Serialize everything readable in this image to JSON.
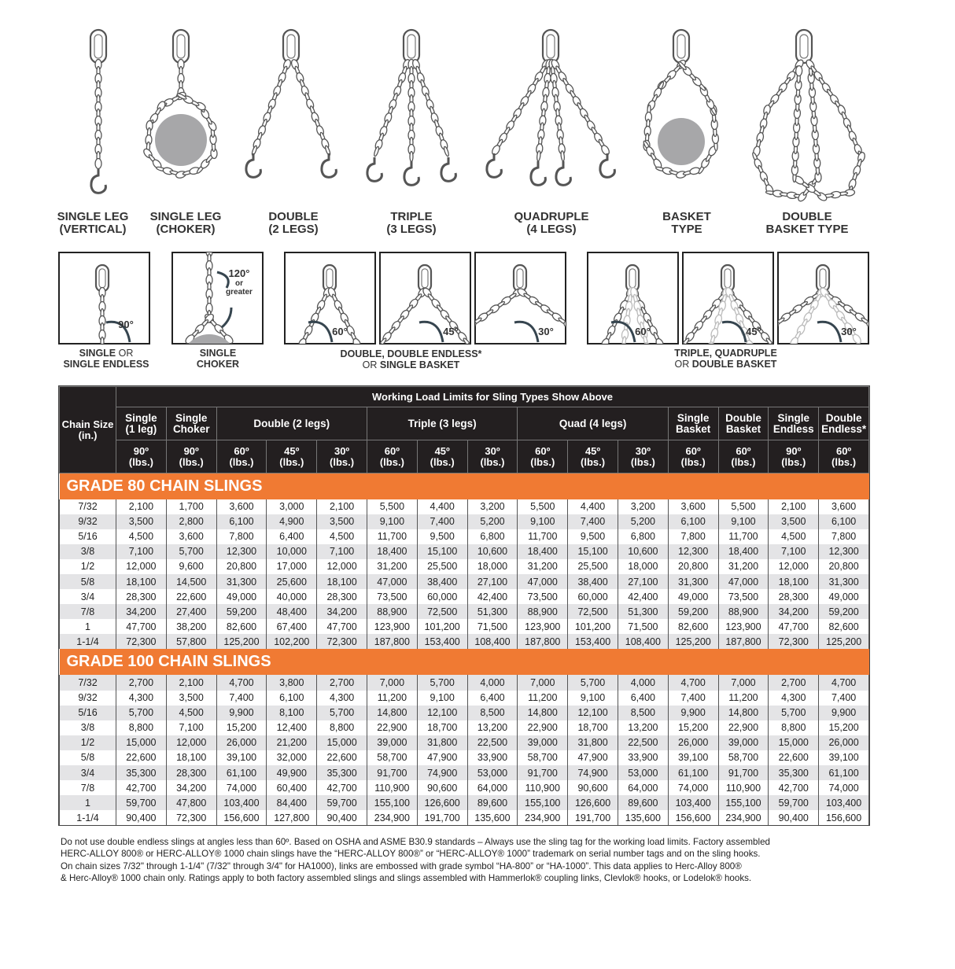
{
  "sling_types": [
    {
      "label": "SINGLE LEG\n(VERTICAL)",
      "icon": "single-leg-vertical-sling-icon"
    },
    {
      "label": "SINGLE LEG\n(CHOKER)",
      "icon": "single-leg-choker-sling-icon"
    },
    {
      "label": "DOUBLE\n(2 LEGS)",
      "icon": "double-leg-sling-icon"
    },
    {
      "label": "TRIPLE\n(3 LEGS)",
      "icon": "triple-leg-sling-icon"
    },
    {
      "label": "QUADRUPLE\n(4 LEGS)",
      "icon": "quadruple-leg-sling-icon"
    },
    {
      "label": "BASKET\nTYPE",
      "icon": "basket-sling-icon"
    },
    {
      "label": "DOUBLE\nBASKET TYPE",
      "icon": "double-basket-sling-icon"
    }
  ],
  "angle_diagrams": [
    {
      "angle": "90°"
    },
    {
      "angle": "120°",
      "note1": "or",
      "note2": "greater"
    },
    {
      "angle": "60°"
    },
    {
      "angle": "45°"
    },
    {
      "angle": "30°"
    },
    {
      "angle": "60°"
    },
    {
      "angle": "45°"
    },
    {
      "angle": "30°"
    }
  ],
  "angle_captions": {
    "single": {
      "a": "SINGLE",
      "b": " OR",
      "c": "SINGLE ENDLESS"
    },
    "choker": {
      "a": "SINGLE",
      "c": "CHOKER"
    },
    "double": {
      "a": "DOUBLE, DOUBLE ENDLESS*",
      "b": "OR ",
      "c": "SINGLE BASKET"
    },
    "triple": {
      "a": "TRIPLE, QUADRUPLE",
      "b": "OR ",
      "c": "DOUBLE BASKET"
    }
  },
  "table": {
    "title": "Working Load Limits for Sling Types Show Above",
    "chain_size_header": "Chain Size\n(in.)",
    "groups": [
      "Single\n(1 leg)",
      "Single\nChoker",
      "Double (2 legs)",
      "Triple (3 legs)",
      "Quad (4 legs)",
      "Single\nBasket",
      "Double\nBasket",
      "Single\nEndless",
      "Double\nEndless*"
    ],
    "angles": [
      "90º\n(lbs.)",
      "90º\n(lbs.)",
      "60º\n(lbs.)",
      "45º\n(lbs.)",
      "30º\n(lbs.)",
      "60º\n(lbs.)",
      "45º\n(lbs.)",
      "30º\n(lbs.)",
      "60º\n(lbs.)",
      "45º\n(lbs.)",
      "30º\n(lbs.)",
      "60º\n(lbs.)",
      "60º\n(lbs.)",
      "90º\n(lbs.)",
      "60º\n(lbs.)"
    ],
    "sections": [
      {
        "title": "GRADE 80 CHAIN SLINGS",
        "rows": [
          [
            "7/32",
            "2,100",
            "1,700",
            "3,600",
            "3,000",
            "2,100",
            "5,500",
            "4,400",
            "3,200",
            "5,500",
            "4,400",
            "3,200",
            "3,600",
            "5,500",
            "2,100",
            "3,600"
          ],
          [
            "9/32",
            "3,500",
            "2,800",
            "6,100",
            "4,900",
            "3,500",
            "9,100",
            "7,400",
            "5,200",
            "9,100",
            "7,400",
            "5,200",
            "6,100",
            "9,100",
            "3,500",
            "6,100"
          ],
          [
            "5/16",
            "4,500",
            "3,600",
            "7,800",
            "6,400",
            "4,500",
            "11,700",
            "9,500",
            "6,800",
            "11,700",
            "9,500",
            "6,800",
            "7,800",
            "11,700",
            "4,500",
            "7,800"
          ],
          [
            "3/8",
            "7,100",
            "5,700",
            "12,300",
            "10,000",
            "7,100",
            "18,400",
            "15,100",
            "10,600",
            "18,400",
            "15,100",
            "10,600",
            "12,300",
            "18,400",
            "7,100",
            "12,300"
          ],
          [
            "1/2",
            "12,000",
            "9,600",
            "20,800",
            "17,000",
            "12,000",
            "31,200",
            "25,500",
            "18,000",
            "31,200",
            "25,500",
            "18,000",
            "20,800",
            "31,200",
            "12,000",
            "20,800"
          ],
          [
            "5/8",
            "18,100",
            "14,500",
            "31,300",
            "25,600",
            "18,100",
            "47,000",
            "38,400",
            "27,100",
            "47,000",
            "38,400",
            "27,100",
            "31,300",
            "47,000",
            "18,100",
            "31,300"
          ],
          [
            "3/4",
            "28,300",
            "22,600",
            "49,000",
            "40,000",
            "28,300",
            "73,500",
            "60,000",
            "42,400",
            "73,500",
            "60,000",
            "42,400",
            "49,000",
            "73,500",
            "28,300",
            "49,000"
          ],
          [
            "7/8",
            "34,200",
            "27,400",
            "59,200",
            "48,400",
            "34,200",
            "88,900",
            "72,500",
            "51,300",
            "88,900",
            "72,500",
            "51,300",
            "59,200",
            "88,900",
            "34,200",
            "59,200"
          ],
          [
            "1",
            "47,700",
            "38,200",
            "82,600",
            "67,400",
            "47,700",
            "123,900",
            "101,200",
            "71,500",
            "123,900",
            "101,200",
            "71,500",
            "82,600",
            "123,900",
            "47,700",
            "82,600"
          ],
          [
            "1-1/4",
            "72,300",
            "57,800",
            "125,200",
            "102,200",
            "72,300",
            "187,800",
            "153,400",
            "108,400",
            "187,800",
            "153,400",
            "108,400",
            "125,200",
            "187,800",
            "72,300",
            "125,200"
          ]
        ]
      },
      {
        "title": "GRADE 100 CHAIN SLINGS",
        "rows": [
          [
            "7/32",
            "2,700",
            "2,100",
            "4,700",
            "3,800",
            "2,700",
            "7,000",
            "5,700",
            "4,000",
            "7,000",
            "5,700",
            "4,000",
            "4,700",
            "7,000",
            "2,700",
            "4,700"
          ],
          [
            "9/32",
            "4,300",
            "3,500",
            "7,400",
            "6,100",
            "4,300",
            "11,200",
            "9,100",
            "6,400",
            "11,200",
            "9,100",
            "6,400",
            "7,400",
            "11,200",
            "4,300",
            "7,400"
          ],
          [
            "5/16",
            "5,700",
            "4,500",
            "9,900",
            "8,100",
            "5,700",
            "14,800",
            "12,100",
            "8,500",
            "14,800",
            "12,100",
            "8,500",
            "9,900",
            "14,800",
            "5,700",
            "9,900"
          ],
          [
            "3/8",
            "8,800",
            "7,100",
            "15,200",
            "12,400",
            "8,800",
            "22,900",
            "18,700",
            "13,200",
            "22,900",
            "18,700",
            "13,200",
            "15,200",
            "22,900",
            "8,800",
            "15,200"
          ],
          [
            "1/2",
            "15,000",
            "12,000",
            "26,000",
            "21,200",
            "15,000",
            "39,000",
            "31,800",
            "22,500",
            "39,000",
            "31,800",
            "22,500",
            "26,000",
            "39,000",
            "15,000",
            "26,000"
          ],
          [
            "5/8",
            "22,600",
            "18,100",
            "39,100",
            "32,000",
            "22,600",
            "58,700",
            "47,900",
            "33,900",
            "58,700",
            "47,900",
            "33,900",
            "39,100",
            "58,700",
            "22,600",
            "39,100"
          ],
          [
            "3/4",
            "35,300",
            "28,300",
            "61,100",
            "49,900",
            "35,300",
            "91,700",
            "74,900",
            "53,000",
            "91,700",
            "74,900",
            "53,000",
            "61,100",
            "91,700",
            "35,300",
            "61,100"
          ],
          [
            "7/8",
            "42,700",
            "34,200",
            "74,000",
            "60,400",
            "42,700",
            "110,900",
            "90,600",
            "64,000",
            "110,900",
            "90,600",
            "64,000",
            "74,000",
            "110,900",
            "42,700",
            "74,000"
          ],
          [
            "1",
            "59,700",
            "47,800",
            "103,400",
            "84,400",
            "59,700",
            "155,100",
            "126,600",
            "89,600",
            "155,100",
            "126,600",
            "89,600",
            "103,400",
            "155,100",
            "59,700",
            "103,400"
          ],
          [
            "1-1/4",
            "90,400",
            "72,300",
            "156,600",
            "127,800",
            "90,400",
            "234,900",
            "191,700",
            "135,600",
            "234,900",
            "191,700",
            "135,600",
            "156,600",
            "234,900",
            "90,400",
            "156,600"
          ]
        ]
      }
    ]
  },
  "notes": [
    "Do not use double endless slings at angles less than 60º. Based on OSHA and ASME B30.9 standards – Always use the sling tag for the working load limits. Factory assembled",
    "HERC-ALLOY 800® or HERC-ALLOY® 1000 chain slings have the “HERC-ALLOY 800®” or “HERC-ALLOY® 1000” trademark on serial number tags and on the sling hooks.",
    "On chain sizes 7/32\" through 1-1/4\" (7/32\" through 3/4\" for HA1000), links are embossed with grade symbol “HA-800” or “HA-1000”. This data applies to Herc-Alloy 800®",
    "& Herc-Alloy® 1000 chain only. Ratings apply to both factory assembled slings and slings assembled with Hammerlok® coupling links, Clevlok® hooks, or Lodelok® hooks."
  ],
  "colors": {
    "orange": "#f07a33",
    "header": "#231f20",
    "alt_row": "#e4e4e6",
    "load_gray": "#a7a7a9",
    "arrow": "#36454f"
  }
}
